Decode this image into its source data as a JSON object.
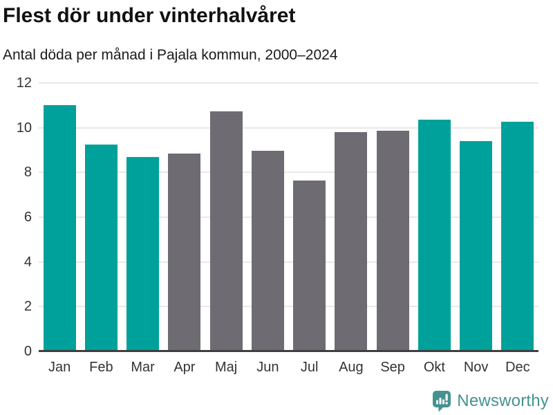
{
  "header": {
    "title": "Flest dör under vinterhalvåret",
    "subtitle": "Antal döda per månad i Pajala kommun, 2000–2024"
  },
  "chart_data": {
    "type": "bar",
    "title": "Flest dör under vinterhalvåret",
    "subtitle": "Antal döda per månad i Pajala kommun, 2000–2024",
    "categories": [
      "Jan",
      "Feb",
      "Mar",
      "Apr",
      "Maj",
      "Jun",
      "Jul",
      "Aug",
      "Sep",
      "Okt",
      "Nov",
      "Dec"
    ],
    "series": [
      {
        "name": "Antal döda per månad",
        "values": [
          11.0,
          9.24,
          8.68,
          8.84,
          10.72,
          8.96,
          7.64,
          9.8,
          9.88,
          10.36,
          9.4,
          10.28
        ]
      }
    ],
    "bar_colors": [
      "teal",
      "teal",
      "teal",
      "gray",
      "gray",
      "gray",
      "gray",
      "gray",
      "gray",
      "teal",
      "teal",
      "teal"
    ],
    "colors": {
      "teal": "#00a19a",
      "gray": "#6e6c72",
      "gridline": "#e8e8e8",
      "axis": "#3f3f3f"
    },
    "xlabel": "",
    "ylabel": "",
    "ylim": [
      0,
      12
    ],
    "yticks": [
      0,
      2,
      4,
      6,
      8,
      10,
      12
    ],
    "grid": "horizontal",
    "legend": "none"
  },
  "footer": {
    "brand": "Newsworthy"
  }
}
